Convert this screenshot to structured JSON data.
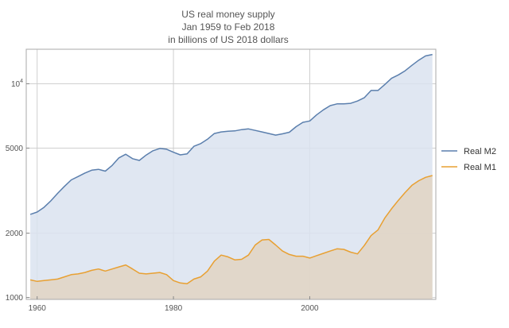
{
  "chart_data": {
    "type": "area",
    "title": [
      "US real money supply",
      "Jan 1959 to Feb 2018",
      "in billions of US 2018 dollars"
    ],
    "xlabel": "",
    "ylabel": "",
    "x_ticks": [
      "1960",
      "1980",
      "2000"
    ],
    "y_scale": "log",
    "y_ticks": [
      {
        "value": 1000,
        "label": "1000"
      },
      {
        "value": 2000,
        "label": "2000"
      },
      {
        "value": 5000,
        "label": "5000"
      }
    ],
    "y_tick_power": {
      "value": 10000,
      "base": "10",
      "exp": "4"
    },
    "xlim": [
      1958.4,
      2018.5
    ],
    "ylim": [
      980,
      14500
    ],
    "grid": true,
    "legend_position": "right",
    "series": [
      {
        "name": "Real M2",
        "color": "#5b7fad",
        "fill": "#dbe3f0",
        "points": [
          [
            1959,
            2450
          ],
          [
            1960,
            2510
          ],
          [
            1961,
            2640
          ],
          [
            1962,
            2830
          ],
          [
            1963,
            3070
          ],
          [
            1964,
            3310
          ],
          [
            1965,
            3550
          ],
          [
            1966,
            3680
          ],
          [
            1967,
            3820
          ],
          [
            1968,
            3940
          ],
          [
            1969,
            3980
          ],
          [
            1970,
            3900
          ],
          [
            1971,
            4150
          ],
          [
            1972,
            4500
          ],
          [
            1973,
            4680
          ],
          [
            1974,
            4460
          ],
          [
            1975,
            4380
          ],
          [
            1976,
            4640
          ],
          [
            1977,
            4860
          ],
          [
            1978,
            4980
          ],
          [
            1979,
            4940
          ],
          [
            1980,
            4780
          ],
          [
            1981,
            4650
          ],
          [
            1982,
            4700
          ],
          [
            1983,
            5100
          ],
          [
            1984,
            5250
          ],
          [
            1985,
            5500
          ],
          [
            1986,
            5850
          ],
          [
            1987,
            5950
          ],
          [
            1988,
            6000
          ],
          [
            1989,
            6020
          ],
          [
            1990,
            6100
          ],
          [
            1991,
            6150
          ],
          [
            1992,
            6050
          ],
          [
            1993,
            5950
          ],
          [
            1994,
            5850
          ],
          [
            1995,
            5750
          ],
          [
            1996,
            5830
          ],
          [
            1997,
            5930
          ],
          [
            1998,
            6300
          ],
          [
            1999,
            6600
          ],
          [
            2000,
            6700
          ],
          [
            2001,
            7150
          ],
          [
            2002,
            7550
          ],
          [
            2003,
            7900
          ],
          [
            2004,
            8050
          ],
          [
            2005,
            8050
          ],
          [
            2006,
            8100
          ],
          [
            2007,
            8300
          ],
          [
            2008,
            8600
          ],
          [
            2009,
            9300
          ],
          [
            2010,
            9300
          ],
          [
            2011,
            9900
          ],
          [
            2012,
            10600
          ],
          [
            2013,
            11000
          ],
          [
            2014,
            11500
          ],
          [
            2015,
            12200
          ],
          [
            2016,
            12900
          ],
          [
            2017,
            13500
          ],
          [
            2018,
            13700
          ]
        ]
      },
      {
        "name": "Real M1",
        "color": "#e8a032",
        "fill": "#e0d3c3",
        "points": [
          [
            1959,
            1210
          ],
          [
            1960,
            1190
          ],
          [
            1961,
            1200
          ],
          [
            1962,
            1210
          ],
          [
            1963,
            1220
          ],
          [
            1964,
            1250
          ],
          [
            1965,
            1280
          ],
          [
            1966,
            1290
          ],
          [
            1967,
            1310
          ],
          [
            1968,
            1340
          ],
          [
            1969,
            1360
          ],
          [
            1970,
            1330
          ],
          [
            1971,
            1360
          ],
          [
            1972,
            1390
          ],
          [
            1973,
            1420
          ],
          [
            1974,
            1360
          ],
          [
            1975,
            1300
          ],
          [
            1976,
            1290
          ],
          [
            1977,
            1300
          ],
          [
            1978,
            1310
          ],
          [
            1979,
            1280
          ],
          [
            1980,
            1200
          ],
          [
            1981,
            1170
          ],
          [
            1982,
            1160
          ],
          [
            1983,
            1220
          ],
          [
            1984,
            1250
          ],
          [
            1985,
            1330
          ],
          [
            1986,
            1480
          ],
          [
            1987,
            1580
          ],
          [
            1988,
            1550
          ],
          [
            1989,
            1500
          ],
          [
            1990,
            1510
          ],
          [
            1991,
            1580
          ],
          [
            1992,
            1760
          ],
          [
            1993,
            1860
          ],
          [
            1994,
            1870
          ],
          [
            1995,
            1760
          ],
          [
            1996,
            1650
          ],
          [
            1997,
            1590
          ],
          [
            1998,
            1560
          ],
          [
            1999,
            1560
          ],
          [
            2000,
            1530
          ],
          [
            2001,
            1570
          ],
          [
            2002,
            1610
          ],
          [
            2003,
            1650
          ],
          [
            2004,
            1690
          ],
          [
            2005,
            1680
          ],
          [
            2006,
            1630
          ],
          [
            2007,
            1600
          ],
          [
            2008,
            1750
          ],
          [
            2009,
            1950
          ],
          [
            2010,
            2070
          ],
          [
            2011,
            2350
          ],
          [
            2012,
            2600
          ],
          [
            2013,
            2850
          ],
          [
            2014,
            3100
          ],
          [
            2015,
            3350
          ],
          [
            2016,
            3520
          ],
          [
            2017,
            3650
          ],
          [
            2018,
            3720
          ]
        ]
      }
    ]
  }
}
